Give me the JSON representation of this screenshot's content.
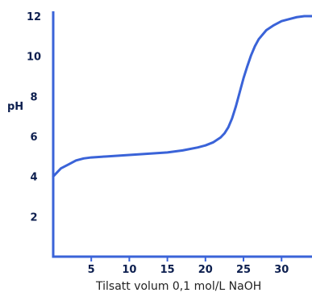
{
  "chart_data": {
    "type": "line",
    "xlabel": "Tilsatt volum 0,1 mol/L NaOH",
    "ylabel": "pH",
    "xlim": [
      0,
      34
    ],
    "ylim": [
      0,
      12
    ],
    "x_ticks": [
      5,
      10,
      15,
      20,
      25,
      30
    ],
    "y_ticks": [
      2,
      4,
      6,
      8,
      10,
      12
    ],
    "grid": false,
    "colors": {
      "line": "#3a63d8",
      "axis": "#3a63d8",
      "text": "#0d1f4f"
    },
    "series": [
      {
        "x": [
          0,
          0.5,
          1,
          2,
          3,
          4,
          5,
          7,
          9,
          11,
          13,
          15,
          17,
          19,
          20,
          21,
          22,
          22.5,
          23,
          23.5,
          24,
          24.5,
          25,
          25.5,
          26,
          26.5,
          27,
          28,
          29,
          30,
          31,
          32,
          33,
          34
        ],
        "y": [
          4.0,
          4.2,
          4.4,
          4.6,
          4.8,
          4.9,
          4.95,
          5.0,
          5.05,
          5.1,
          5.15,
          5.2,
          5.3,
          5.45,
          5.55,
          5.7,
          5.95,
          6.15,
          6.45,
          6.9,
          7.5,
          8.2,
          8.9,
          9.5,
          10.05,
          10.5,
          10.85,
          11.3,
          11.55,
          11.75,
          11.85,
          11.95,
          12.0,
          12.0
        ]
      }
    ]
  }
}
